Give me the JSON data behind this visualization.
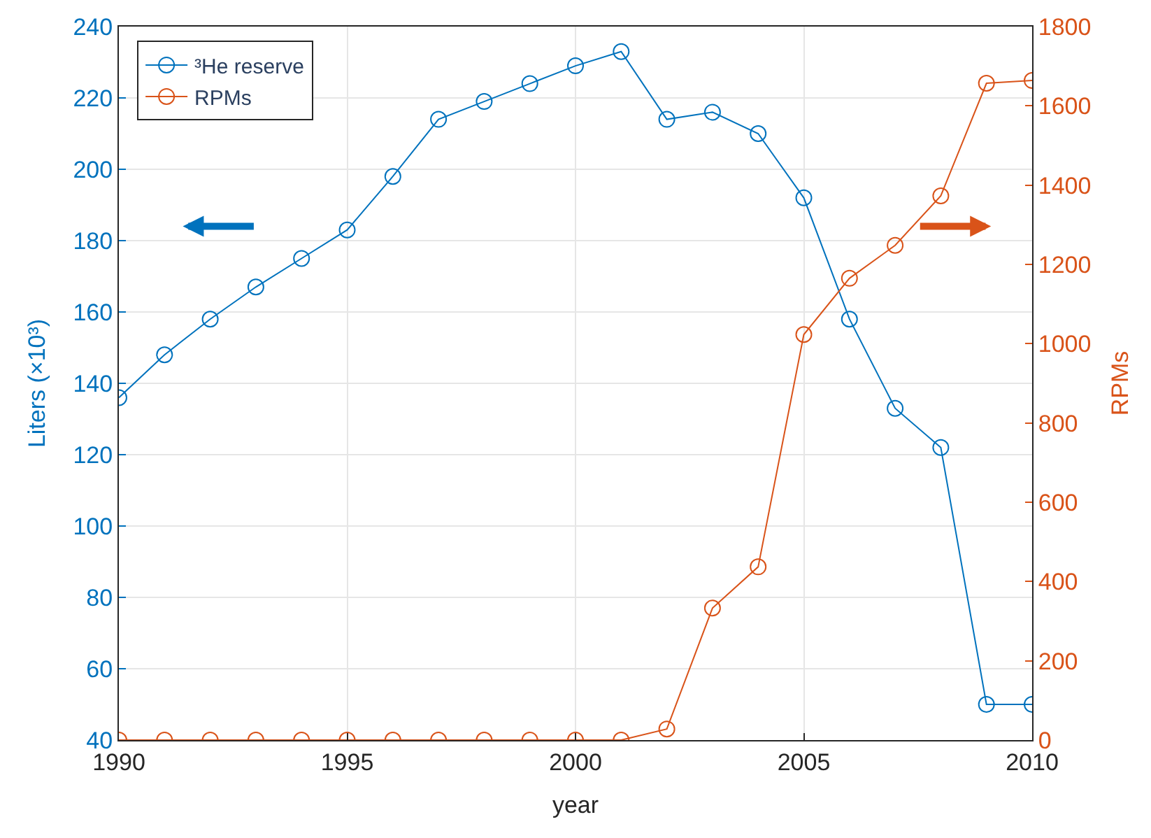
{
  "chart_data": {
    "type": "line",
    "xlabel": "year",
    "ylabel": "Liters (×10³)",
    "y2label": "RPMs",
    "x": [
      1990,
      1991,
      1992,
      1993,
      1994,
      1995,
      1996,
      1997,
      1998,
      1999,
      2000,
      2001,
      2002,
      2003,
      2004,
      2005,
      2006,
      2007,
      2008,
      2009,
      2010
    ],
    "series": [
      {
        "name": "³He reserve",
        "color": "#0072bd",
        "values": [
          136,
          148,
          158,
          167,
          175,
          183,
          198,
          214,
          219,
          224,
          229,
          233,
          214,
          216,
          210,
          192,
          158,
          133,
          122,
          50,
          50
        ]
      },
      {
        "name": "RPMs",
        "color": "#d95319",
        "axis": "y2",
        "values": [
          0,
          0,
          0,
          0,
          0,
          0,
          0,
          0,
          0,
          0,
          0,
          0,
          28,
          333,
          437,
          1023,
          1165,
          1248,
          1373,
          1657,
          1664
        ]
      }
    ],
    "xlim": [
      1990,
      2010
    ],
    "xticks": [
      1990,
      1995,
      2000,
      2005,
      2010
    ],
    "ylim": [
      40,
      240
    ],
    "yticks": [
      40,
      60,
      80,
      100,
      120,
      140,
      160,
      180,
      200,
      220,
      240
    ],
    "y2lim": [
      0,
      1800
    ],
    "y2ticks": [
      0,
      200,
      400,
      600,
      800,
      1000,
      1200,
      1400,
      1600,
      1800
    ],
    "grid": true,
    "legend": "top left",
    "marker": "circle",
    "line_style": "solid"
  }
}
